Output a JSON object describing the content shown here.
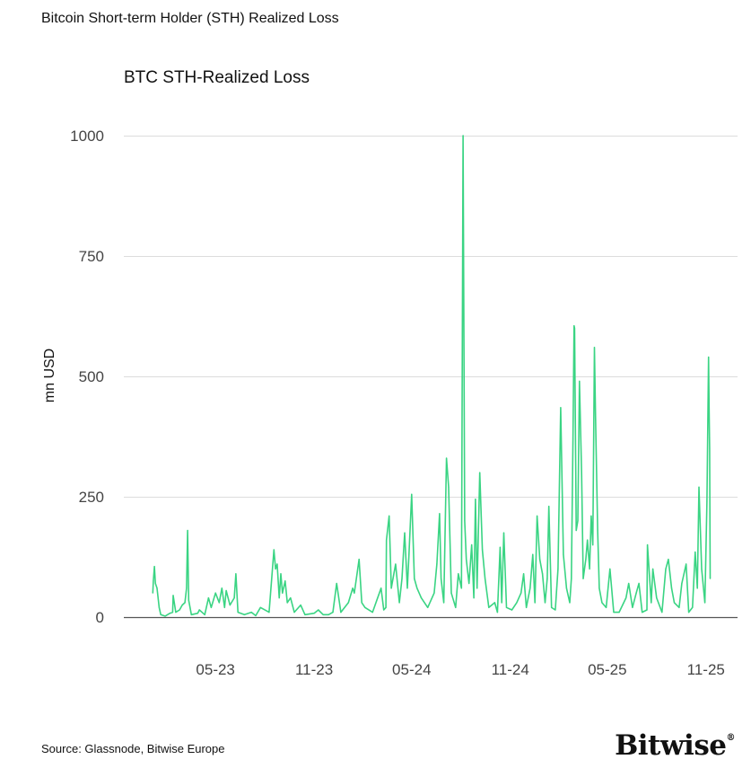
{
  "header": {
    "title": "Bitcoin Short-term Holder (STH) Realized Loss"
  },
  "footer": {
    "source": "Source: Glassnode, Bitwise Europe",
    "logo_text": "Bitwise"
  },
  "chart_data": {
    "type": "line",
    "title": "BTC STH-Realized Loss",
    "xlabel": "",
    "ylabel": "mn USD",
    "ylim": [
      0,
      1000
    ],
    "xlim": [
      "2022-11-11",
      "2025-12-30"
    ],
    "yticks": [
      0,
      250,
      500,
      750,
      1000
    ],
    "ytick_labels": [
      "0",
      "250",
      "500",
      "750",
      "1000"
    ],
    "xticks": [
      "2023-05-01",
      "2023-11-01",
      "2024-05-01",
      "2024-11-01",
      "2025-05-01",
      "2025-11-01"
    ],
    "xtick_labels": [
      "05-23",
      "11-23",
      "05-24",
      "11-24",
      "05-25",
      "11-25"
    ],
    "grid": true,
    "line_color": "#3ad483",
    "series": [
      {
        "points": [
          [
            "2023-01-04",
            50
          ],
          [
            "2023-01-05",
            75
          ],
          [
            "2023-01-07",
            105
          ],
          [
            "2023-01-09",
            70
          ],
          [
            "2023-01-12",
            60
          ],
          [
            "2023-01-16",
            20
          ],
          [
            "2023-01-19",
            5
          ],
          [
            "2023-01-27",
            2
          ],
          [
            "2023-02-05",
            8
          ],
          [
            "2023-02-10",
            10
          ],
          [
            "2023-02-11",
            45
          ],
          [
            "2023-02-16",
            10
          ],
          [
            "2023-02-23",
            15
          ],
          [
            "2023-02-28",
            25
          ],
          [
            "2023-03-05",
            30
          ],
          [
            "2023-03-08",
            60
          ],
          [
            "2023-03-10",
            180
          ],
          [
            "2023-03-12",
            35
          ],
          [
            "2023-03-17",
            5
          ],
          [
            "2023-03-29",
            8
          ],
          [
            "2023-04-01",
            15
          ],
          [
            "2023-04-11",
            5
          ],
          [
            "2023-04-18",
            40
          ],
          [
            "2023-04-23",
            20
          ],
          [
            "2023-05-01",
            50
          ],
          [
            "2023-05-08",
            30
          ],
          [
            "2023-05-13",
            60
          ],
          [
            "2023-05-18",
            20
          ],
          [
            "2023-05-21",
            55
          ],
          [
            "2023-05-28",
            25
          ],
          [
            "2023-06-05",
            40
          ],
          [
            "2023-06-08",
            90
          ],
          [
            "2023-06-12",
            10
          ],
          [
            "2023-06-24",
            5
          ],
          [
            "2023-07-07",
            10
          ],
          [
            "2023-07-15",
            3
          ],
          [
            "2023-07-24",
            20
          ],
          [
            "2023-08-09",
            10
          ],
          [
            "2023-08-18",
            140
          ],
          [
            "2023-08-21",
            100
          ],
          [
            "2023-08-24",
            110
          ],
          [
            "2023-08-28",
            40
          ],
          [
            "2023-08-31",
            90
          ],
          [
            "2023-09-03",
            50
          ],
          [
            "2023-09-08",
            75
          ],
          [
            "2023-09-12",
            30
          ],
          [
            "2023-09-18",
            40
          ],
          [
            "2023-09-25",
            10
          ],
          [
            "2023-10-07",
            25
          ],
          [
            "2023-10-15",
            5
          ],
          [
            "2023-11-01",
            8
          ],
          [
            "2023-11-09",
            15
          ],
          [
            "2023-11-18",
            5
          ],
          [
            "2023-11-28",
            5
          ],
          [
            "2023-12-06",
            10
          ],
          [
            "2023-12-13",
            70
          ],
          [
            "2023-12-21",
            10
          ],
          [
            "2024-01-04",
            30
          ],
          [
            "2024-01-12",
            60
          ],
          [
            "2024-01-15",
            50
          ],
          [
            "2024-01-24",
            120
          ],
          [
            "2024-01-29",
            30
          ],
          [
            "2024-02-04",
            20
          ],
          [
            "2024-02-18",
            10
          ],
          [
            "2024-03-05",
            60
          ],
          [
            "2024-03-10",
            15
          ],
          [
            "2024-03-14",
            20
          ],
          [
            "2024-03-15",
            160
          ],
          [
            "2024-03-20",
            210
          ],
          [
            "2024-03-24",
            60
          ],
          [
            "2024-04-01",
            110
          ],
          [
            "2024-04-08",
            30
          ],
          [
            "2024-04-13",
            80
          ],
          [
            "2024-04-18",
            175
          ],
          [
            "2024-04-23",
            60
          ],
          [
            "2024-04-26",
            130
          ],
          [
            "2024-05-01",
            255
          ],
          [
            "2024-05-06",
            80
          ],
          [
            "2024-05-11",
            60
          ],
          [
            "2024-05-19",
            40
          ],
          [
            "2024-05-31",
            20
          ],
          [
            "2024-06-12",
            50
          ],
          [
            "2024-06-17",
            110
          ],
          [
            "2024-06-22",
            215
          ],
          [
            "2024-06-25",
            80
          ],
          [
            "2024-06-30",
            30
          ],
          [
            "2024-07-05",
            330
          ],
          [
            "2024-07-09",
            270
          ],
          [
            "2024-07-14",
            50
          ],
          [
            "2024-07-22",
            20
          ],
          [
            "2024-07-27",
            90
          ],
          [
            "2024-08-02",
            60
          ],
          [
            "2024-08-05",
            1000
          ],
          [
            "2024-08-08",
            200
          ],
          [
            "2024-08-11",
            120
          ],
          [
            "2024-08-16",
            70
          ],
          [
            "2024-08-21",
            150
          ],
          [
            "2024-08-25",
            40
          ],
          [
            "2024-08-28",
            245
          ],
          [
            "2024-08-31",
            60
          ],
          [
            "2024-09-05",
            300
          ],
          [
            "2024-09-10",
            140
          ],
          [
            "2024-09-15",
            80
          ],
          [
            "2024-09-22",
            20
          ],
          [
            "2024-10-03",
            30
          ],
          [
            "2024-10-08",
            10
          ],
          [
            "2024-10-13",
            145
          ],
          [
            "2024-10-16",
            30
          ],
          [
            "2024-10-20",
            175
          ],
          [
            "2024-10-25",
            20
          ],
          [
            "2024-11-04",
            15
          ],
          [
            "2024-11-13",
            30
          ],
          [
            "2024-11-21",
            50
          ],
          [
            "2024-11-26",
            90
          ],
          [
            "2024-12-01",
            20
          ],
          [
            "2024-12-08",
            60
          ],
          [
            "2024-12-13",
            130
          ],
          [
            "2024-12-17",
            30
          ],
          [
            "2024-12-21",
            210
          ],
          [
            "2024-12-26",
            120
          ],
          [
            "2024-12-31",
            90
          ],
          [
            "2025-01-05",
            30
          ],
          [
            "2025-01-09",
            80
          ],
          [
            "2025-01-12",
            230
          ],
          [
            "2025-01-17",
            20
          ],
          [
            "2025-01-24",
            15
          ],
          [
            "2025-01-29",
            100
          ],
          [
            "2025-02-03",
            435
          ],
          [
            "2025-02-08",
            130
          ],
          [
            "2025-02-14",
            60
          ],
          [
            "2025-02-20",
            30
          ],
          [
            "2025-02-23",
            80
          ],
          [
            "2025-02-26",
            370
          ],
          [
            "2025-02-28",
            605
          ],
          [
            "2025-03-01",
            600
          ],
          [
            "2025-03-04",
            180
          ],
          [
            "2025-03-07",
            200
          ],
          [
            "2025-03-10",
            490
          ],
          [
            "2025-03-14",
            300
          ],
          [
            "2025-03-17",
            80
          ],
          [
            "2025-03-22",
            120
          ],
          [
            "2025-03-25",
            160
          ],
          [
            "2025-03-29",
            100
          ],
          [
            "2025-04-01",
            210
          ],
          [
            "2025-04-04",
            150
          ],
          [
            "2025-04-07",
            560
          ],
          [
            "2025-04-09",
            420
          ],
          [
            "2025-04-13",
            180
          ],
          [
            "2025-04-16",
            60
          ],
          [
            "2025-04-21",
            30
          ],
          [
            "2025-04-29",
            20
          ],
          [
            "2025-05-06",
            100
          ],
          [
            "2025-05-13",
            10
          ],
          [
            "2025-05-23",
            10
          ],
          [
            "2025-06-05",
            40
          ],
          [
            "2025-06-10",
            70
          ],
          [
            "2025-06-17",
            20
          ],
          [
            "2025-06-24",
            50
          ],
          [
            "2025-06-29",
            70
          ],
          [
            "2025-07-05",
            10
          ],
          [
            "2025-07-14",
            15
          ],
          [
            "2025-07-15",
            150
          ],
          [
            "2025-07-22",
            30
          ],
          [
            "2025-07-25",
            100
          ],
          [
            "2025-08-01",
            40
          ],
          [
            "2025-08-11",
            10
          ],
          [
            "2025-08-18",
            100
          ],
          [
            "2025-08-23",
            120
          ],
          [
            "2025-08-29",
            60
          ],
          [
            "2025-09-03",
            30
          ],
          [
            "2025-09-12",
            20
          ],
          [
            "2025-09-17",
            70
          ],
          [
            "2025-09-25",
            110
          ],
          [
            "2025-09-30",
            10
          ],
          [
            "2025-10-07",
            20
          ],
          [
            "2025-10-12",
            135
          ],
          [
            "2025-10-16",
            60
          ],
          [
            "2025-10-19",
            270
          ],
          [
            "2025-10-24",
            100
          ],
          [
            "2025-10-30",
            30
          ],
          [
            "2025-11-03",
            240
          ],
          [
            "2025-11-06",
            540
          ],
          [
            "2025-11-07",
            435
          ],
          [
            "2025-11-08",
            350
          ],
          [
            "2025-11-09",
            80
          ]
        ]
      }
    ]
  }
}
